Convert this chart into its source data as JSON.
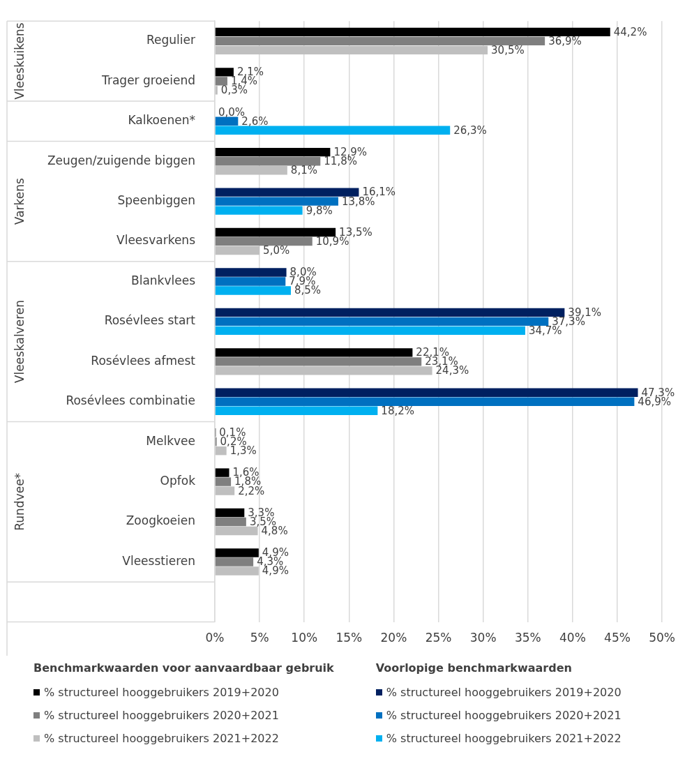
{
  "chart_data": {
    "type": "bar",
    "orientation": "horizontal",
    "categories": [
      "Regulier",
      "Trager groeiend",
      "Kalkoenen*",
      "Zeugen/zuigende biggen",
      "Speenbiggen",
      "Vleesvarkens",
      "Blankvlees",
      "Rosévlees start",
      "Rosévlees afmest",
      "Rosévlees combinatie",
      "Melkvee",
      "Opfok",
      "Zoogkoeien",
      "Vleesstieren",
      null
    ],
    "series": [
      {
        "name": "% structureel hooggebruikers 2019+2020",
        "color": "#000000",
        "values": [
          44.2,
          2.1,
          null,
          12.9,
          null,
          13.5,
          null,
          null,
          22.1,
          null,
          0.1,
          1.6,
          3.3,
          4.9,
          null
        ],
        "value_labels": [
          "44,2%",
          "2,1%",
          null,
          "12,9%",
          null,
          "13,5%",
          null,
          null,
          "22,1%",
          null,
          "0,1%",
          "1,6%",
          "3,3%",
          "4,9%",
          null
        ]
      },
      {
        "name": "% structureel hooggebruikers 2020+2021",
        "color": "#7f7f7f",
        "values": [
          36.9,
          1.4,
          null,
          11.8,
          null,
          10.9,
          null,
          null,
          23.1,
          null,
          0.2,
          1.8,
          3.5,
          4.3,
          null
        ],
        "value_labels": [
          "36,9%",
          "1,4%",
          null,
          "11,8%",
          null,
          "10,9%",
          null,
          null,
          "23,1%",
          null,
          "0,2%",
          "1,8%",
          "3,5%",
          "4,3%",
          null
        ]
      },
      {
        "name": "% structureel hooggebruikers 2021+2022",
        "color": "#bfbfbf",
        "values": [
          30.5,
          0.3,
          null,
          8.1,
          null,
          5.0,
          null,
          null,
          24.3,
          null,
          1.3,
          2.2,
          4.8,
          4.9,
          null
        ],
        "value_labels": [
          "30,5%",
          "0,3%",
          null,
          "8,1%",
          null,
          "5,0%",
          null,
          null,
          "24,3%",
          null,
          "1,3%",
          "2,2%",
          "4,8%",
          "4,9%",
          null
        ]
      },
      {
        "name": "% structureel hooggebruikers 2019+2020",
        "color": "#002060",
        "values": [
          null,
          null,
          0.0,
          null,
          16.1,
          null,
          8.0,
          39.1,
          null,
          47.3,
          null,
          null,
          null,
          null,
          null
        ],
        "value_labels": [
          null,
          null,
          "0,0%",
          null,
          "16,1%",
          null,
          "8,0%",
          "39,1%",
          null,
          "47,3%",
          null,
          null,
          null,
          null,
          null
        ]
      },
      {
        "name": "% structureel hooggebruikers 2020+2021",
        "color": "#0070c0",
        "values": [
          null,
          null,
          2.6,
          null,
          13.8,
          null,
          7.9,
          37.3,
          null,
          46.9,
          null,
          null,
          null,
          null,
          null
        ],
        "value_labels": [
          null,
          null,
          "2,6%",
          null,
          "13,8%",
          null,
          "7,9%",
          "37,3%",
          null,
          "46,9%",
          null,
          null,
          null,
          null,
          null
        ]
      },
      {
        "name": "% structureel hooggebruikers 2021+2022",
        "color": "#00b0f0",
        "values": [
          null,
          null,
          26.3,
          null,
          9.8,
          null,
          8.5,
          34.7,
          null,
          18.2,
          null,
          null,
          null,
          null,
          null
        ],
        "value_labels": [
          null,
          null,
          "26,3%",
          null,
          "9,8%",
          null,
          "8,5%",
          "34,7%",
          null,
          "18,2%",
          null,
          null,
          null,
          null,
          null
        ]
      }
    ],
    "xlim": [
      0,
      50
    ],
    "xticks": [
      {
        "value": 0,
        "label": "0%"
      },
      {
        "value": 5,
        "label": "5%"
      },
      {
        "value": 10,
        "label": "10%"
      },
      {
        "value": 15,
        "label": "15%"
      },
      {
        "value": 20,
        "label": "20%"
      },
      {
        "value": 25,
        "label": "25%"
      },
      {
        "value": 30,
        "label": "30%"
      },
      {
        "value": 35,
        "label": "35%"
      },
      {
        "value": 40,
        "label": "40%"
      },
      {
        "value": 45,
        "label": "45%"
      },
      {
        "value": 50,
        "label": "50%"
      }
    ],
    "grid": "x",
    "legend": "bottom",
    "annotations": [
      "Vleeskuikens",
      "Varkens",
      "Vleeskalveren",
      "Rundvee*",
      "Benchmarkwaarden voor aanvaardbaar gebruik",
      "Voorlopige benchmarkwaarden"
    ]
  }
}
